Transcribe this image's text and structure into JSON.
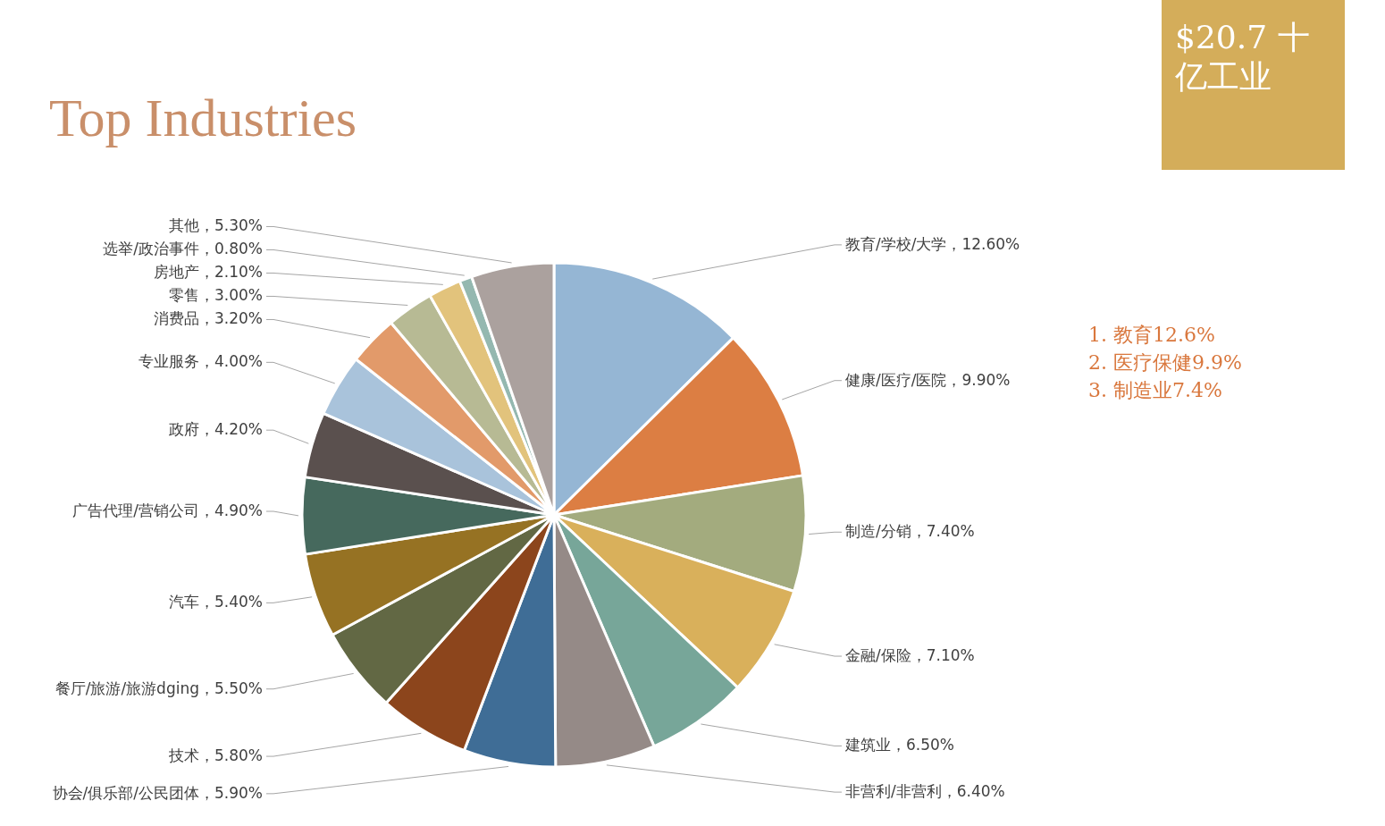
{
  "chart_data": {
    "type": "pie",
    "title": "Top Industries",
    "categories": [
      "教育/学校/大学",
      "健康/医疗/医院",
      "制造/分销",
      "金融/保险",
      "建筑业",
      "非营利/非营利",
      "协会/俱乐部/公民团体",
      "技术",
      "餐厅/旅游/旅游dging",
      "汽车",
      "广告代理/营销公司",
      "政府",
      "专业服务",
      "消费品",
      "零售",
      "房地产",
      "选举/政治事件",
      "其他"
    ],
    "values": [
      12.6,
      9.9,
      7.4,
      7.1,
      6.5,
      6.4,
      5.9,
      5.8,
      5.5,
      5.4,
      4.9,
      4.2,
      4.0,
      3.2,
      3.0,
      2.1,
      0.8,
      5.3
    ],
    "value_labels": [
      "12.60%",
      "9.90%",
      "7.40%",
      "7.10%",
      "6.50%",
      "6.40%",
      "5.90%",
      "5.80%",
      "5.50%",
      "5.40%",
      "4.90%",
      "4.20%",
      "4.00%",
      "3.20%",
      "3.00%",
      "2.10%",
      "0.80%",
      "5.30%"
    ],
    "colors": [
      "#95b6d4",
      "#dc7e43",
      "#a3ab7e",
      "#d9b05b",
      "#77a699",
      "#958a87",
      "#3f6d96",
      "#8c451c",
      "#626844",
      "#967223",
      "#46695d",
      "#5a504e",
      "#a9c3db",
      "#e29a6a",
      "#b7ba94",
      "#e2c37c",
      "#94b8b0",
      "#aba19e"
    ],
    "annotations": [
      "$20.7 十亿工业",
      "1.  教育12.6%",
      "2.  医疗保健9.9%",
      "3.  制造业7.4%"
    ]
  }
}
